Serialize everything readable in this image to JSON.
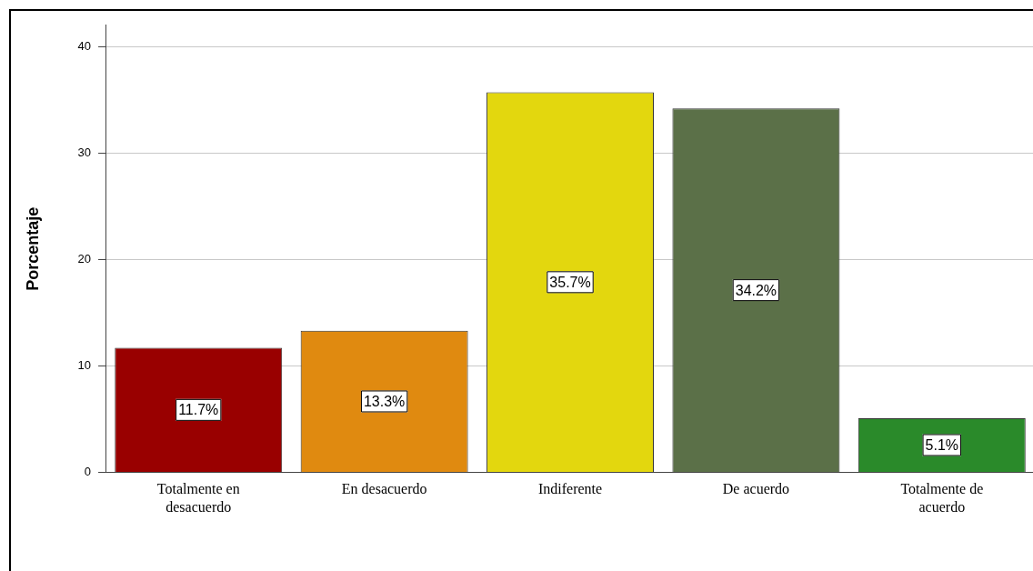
{
  "chart_data": {
    "type": "bar",
    "ylabel": "Porcentaje",
    "categories": [
      "Totalmente en desacuerdo",
      "En desacuerdo",
      "Indiferente",
      "De acuerdo",
      "Totalmente de acuerdo"
    ],
    "values": [
      11.7,
      13.3,
      35.7,
      34.2,
      5.1
    ],
    "colors": [
      "#990000",
      "#e08a10",
      "#e3d70e",
      "#5b7048",
      "#2a8a2a"
    ],
    "value_labels": [
      "11.7%",
      "13.3%",
      "35.7%",
      "34.2%",
      "5.1%"
    ],
    "ylim": [
      0,
      42
    ],
    "yticks": [
      0,
      10,
      20,
      30,
      40
    ],
    "grid": "y",
    "legend": false
  }
}
